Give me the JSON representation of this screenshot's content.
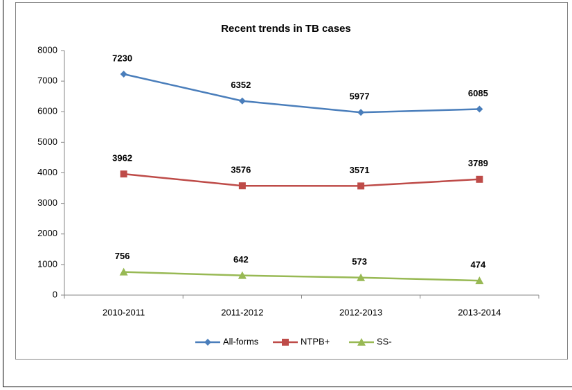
{
  "chart_data": {
    "type": "line",
    "title": "Recent trends in TB cases",
    "categories": [
      "2010-2011",
      "2011-2012",
      "2012-2013",
      "2013-2014"
    ],
    "series": [
      {
        "name": "All-forms",
        "color": "#4a7ebb",
        "marker": "diamond",
        "values": [
          7230,
          6352,
          5977,
          6085
        ]
      },
      {
        "name": "NTPB+",
        "color": "#be4b48",
        "marker": "square",
        "values": [
          3962,
          3576,
          3571,
          3789
        ]
      },
      {
        "name": "SS-",
        "color": "#98b954",
        "marker": "triangle",
        "values": [
          756,
          642,
          573,
          474
        ]
      }
    ],
    "ylim": [
      0,
      8000
    ],
    "yticks": [
      0,
      1000,
      2000,
      3000,
      4000,
      5000,
      6000,
      7000,
      8000
    ],
    "grid": false,
    "legend": "bottom"
  }
}
